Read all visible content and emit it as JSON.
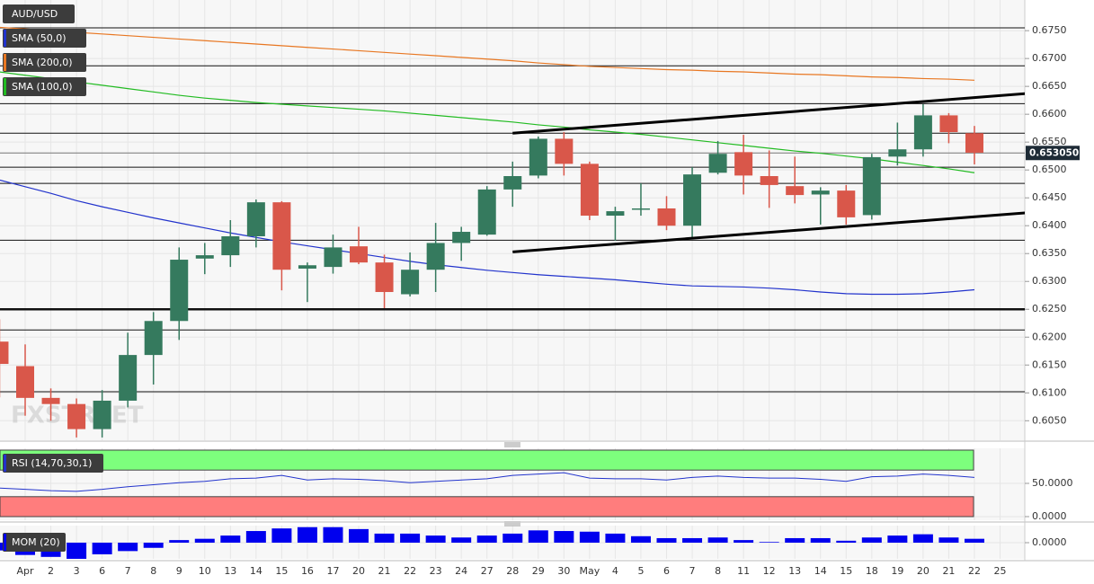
{
  "chart_data": [
    {
      "type": "candlestick",
      "title": "AUD/USD",
      "categories": [
        null,
        "Apr",
        "2",
        "3",
        "6",
        "7",
        "8",
        "9",
        "10",
        "13",
        "14",
        "15",
        "16",
        "17",
        "20",
        "21",
        "22",
        "23",
        "24",
        "27",
        "28",
        "29",
        "30",
        "May",
        "4",
        "5",
        "6",
        "7",
        "8",
        "11",
        "12",
        "13",
        "14",
        "15",
        "18",
        "19",
        "20",
        "21",
        "22",
        "25"
      ],
      "open": [
        0.6192,
        0.6148,
        0.6091,
        0.608,
        0.6035,
        0.6086,
        0.6168,
        0.6229,
        0.6341,
        0.6347,
        0.6381,
        0.6442,
        0.6323,
        0.6326,
        0.6363,
        0.6334,
        0.6277,
        0.6321,
        0.6369,
        0.6384,
        0.6465,
        0.649,
        0.6556,
        0.6511,
        0.6418,
        0.6429,
        0.6431,
        0.64,
        0.6495,
        0.6532,
        0.6489,
        0.6471,
        0.6456,
        0.6463,
        0.6419,
        0.6524,
        0.6537,
        0.6598,
        0.6566,
        null
      ],
      "high": [
        0.6232,
        0.6187,
        0.6108,
        0.609,
        0.6105,
        0.6208,
        0.6245,
        0.6361,
        0.6369,
        0.641,
        0.6447,
        0.6444,
        0.6334,
        0.6384,
        0.6398,
        0.6348,
        0.6352,
        0.6405,
        0.6398,
        0.6471,
        0.6515,
        0.656,
        0.6568,
        0.6515,
        0.6434,
        0.6476,
        0.6453,
        0.6505,
        0.6552,
        0.6563,
        0.6535,
        0.6524,
        0.6469,
        0.6473,
        0.6529,
        0.6585,
        0.6618,
        0.6602,
        0.6579,
        null
      ],
      "low": [
        0.6092,
        0.6059,
        0.605,
        0.602,
        0.602,
        0.6074,
        0.6115,
        0.6195,
        0.6313,
        0.6326,
        0.6361,
        0.6284,
        0.6263,
        0.6314,
        0.6331,
        0.6252,
        0.6273,
        0.6281,
        0.6337,
        0.6382,
        0.6434,
        0.6485,
        0.649,
        0.641,
        0.6373,
        0.6418,
        0.6392,
        0.6377,
        0.6492,
        0.6456,
        0.6432,
        0.644,
        0.6402,
        0.6402,
        0.6411,
        0.6508,
        0.6524,
        0.6548,
        0.651,
        null
      ],
      "close": [
        0.6152,
        0.6091,
        0.608,
        0.6035,
        0.6086,
        0.6168,
        0.6229,
        0.6339,
        0.6347,
        0.6381,
        0.6442,
        0.6321,
        0.6329,
        0.6361,
        0.6334,
        0.6281,
        0.6321,
        0.6369,
        0.6389,
        0.6465,
        0.6489,
        0.6556,
        0.6511,
        0.6418,
        0.6426,
        0.6431,
        0.64,
        0.6492,
        0.6529,
        0.649,
        0.6473,
        0.6455,
        0.6463,
        0.6415,
        0.6523,
        0.6537,
        0.6598,
        0.6568,
        0.6531,
        null
      ],
      "up_color": "#357a5e",
      "down_color": "#d9574a",
      "series": [
        {
          "name": "SMA (50,0)",
          "color": "#2233cc",
          "values": [
            0.6482,
            0.647,
            0.6458,
            0.6445,
            0.6434,
            0.6424,
            0.6414,
            0.6405,
            0.6396,
            0.6387,
            0.6379,
            0.6371,
            0.6364,
            0.6357,
            0.635,
            0.6343,
            0.6336,
            0.633,
            0.6325,
            0.632,
            0.6316,
            0.6312,
            0.6309,
            0.6306,
            0.6303,
            0.6299,
            0.6295,
            0.6292,
            0.6291,
            0.629,
            0.6288,
            0.6285,
            0.6281,
            0.6278,
            0.6277,
            0.6277,
            0.6278,
            0.6281,
            0.6285,
            null
          ]
        },
        {
          "name": "SMA (200,0)",
          "color": "#e87722",
          "values": [
            0.6756,
            0.6753,
            0.675,
            0.6747,
            0.6744,
            0.6741,
            0.6738,
            0.6735,
            0.6732,
            0.6729,
            0.6726,
            0.6723,
            0.672,
            0.6717,
            0.6714,
            0.6711,
            0.6708,
            0.6705,
            0.6702,
            0.6699,
            0.6696,
            0.6692,
            0.6689,
            0.6686,
            0.6684,
            0.6682,
            0.668,
            0.6679,
            0.6677,
            0.6676,
            0.6674,
            0.6672,
            0.6671,
            0.6669,
            0.6667,
            0.6666,
            0.6664,
            0.6663,
            0.6661,
            null
          ]
        },
        {
          "name": "SMA (100,0)",
          "color": "#22bb22",
          "values": [
            0.6676,
            0.667,
            0.6664,
            0.6658,
            0.6652,
            0.6646,
            0.664,
            0.6634,
            0.6629,
            0.6625,
            0.6621,
            0.6618,
            0.6615,
            0.6612,
            0.6609,
            0.6606,
            0.6602,
            0.6598,
            0.6594,
            0.659,
            0.6586,
            0.6581,
            0.6577,
            0.6572,
            0.6568,
            0.6564,
            0.6559,
            0.6554,
            0.6549,
            0.6544,
            0.6539,
            0.6534,
            0.653,
            0.6525,
            0.652,
            0.6514,
            0.6508,
            0.6502,
            0.6495,
            null
          ]
        }
      ],
      "levels": [
        0.6755,
        0.6687,
        0.6619,
        0.6566,
        0.6505,
        0.6476,
        0.6374,
        0.625,
        0.6213,
        0.6102
      ],
      "trendlines": [
        {
          "x": [
            20,
            40
          ],
          "y": [
            0.6566,
            0.6637
          ]
        },
        {
          "x": [
            20,
            40
          ],
          "y": [
            0.6353,
            0.6423
          ]
        }
      ],
      "last_price": {
        "value": 0.65305,
        "label": "0.653050"
      },
      "watermark": "FXSTREET",
      "ylim": [
        0.6015,
        0.6805
      ],
      "yticks": [
        {
          "value": 0.605,
          "label": "0.6050"
        },
        {
          "value": 0.61,
          "label": "0.6100"
        },
        {
          "value": 0.615,
          "label": "0.6150"
        },
        {
          "value": 0.62,
          "label": "0.6200"
        },
        {
          "value": 0.625,
          "label": "0.6250"
        },
        {
          "value": 0.63,
          "label": "0.6300"
        },
        {
          "value": 0.635,
          "label": "0.6350"
        },
        {
          "value": 0.64,
          "label": "0.6400"
        },
        {
          "value": 0.645,
          "label": "0.6450"
        },
        {
          "value": 0.65,
          "label": "0.6500"
        },
        {
          "value": 0.655,
          "label": "0.6550"
        },
        {
          "value": 0.66,
          "label": "0.6600"
        },
        {
          "value": 0.665,
          "label": "0.6650"
        },
        {
          "value": 0.67,
          "label": "0.6700"
        },
        {
          "value": 0.675,
          "label": "0.6750"
        }
      ],
      "grid": true
    },
    {
      "type": "line",
      "title": "RSI (14,70,30,1)",
      "color": "#2233cc",
      "values": [
        43,
        41,
        39,
        38,
        41,
        45,
        48,
        51,
        53,
        57,
        58,
        62,
        55,
        57,
        56,
        54,
        51,
        53,
        55,
        57,
        62,
        64,
        66,
        58,
        57,
        57,
        55,
        59,
        61,
        59,
        58,
        58,
        56,
        53,
        60,
        61,
        64,
        62,
        59,
        null
      ],
      "upper": 70,
      "lower": 30,
      "upper_color": "#7dff7d",
      "lower_color": "#ff7d7d",
      "ylim": [
        0,
        100
      ],
      "yticks": [
        {
          "value": 50,
          "label": "50.0000"
        },
        {
          "value": 0,
          "label": "0.0000"
        }
      ]
    },
    {
      "type": "bar",
      "title": "MOM (20)",
      "color": "#0000ee",
      "values": [
        -0.012,
        -0.019,
        -0.022,
        -0.025,
        -0.018,
        -0.013,
        -0.008,
        0.004,
        0.006,
        0.011,
        0.018,
        0.022,
        0.024,
        0.024,
        0.021,
        0.014,
        0.014,
        0.011,
        0.008,
        0.011,
        0.014,
        0.019,
        0.018,
        0.017,
        0.014,
        0.01,
        0.007,
        0.007,
        0.008,
        0.004,
        0.001,
        0.007,
        0.007,
        0.003,
        0.008,
        0.011,
        0.013,
        0.008,
        0.006,
        null
      ],
      "ylim": [
        -0.025,
        0.025
      ],
      "yticks": [
        {
          "value": 0,
          "label": "0.0000"
        }
      ]
    }
  ]
}
